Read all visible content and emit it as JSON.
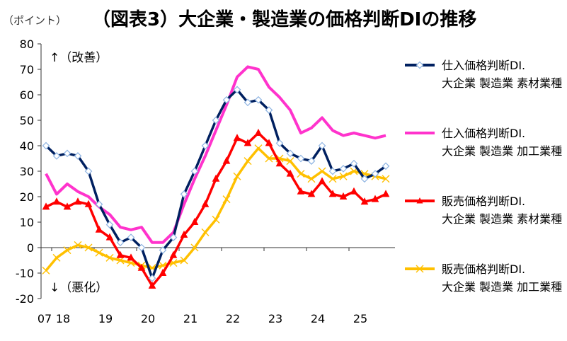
{
  "unit_label": "（ポイント）",
  "chart_data": {
    "type": "line",
    "title": "（図表3）大企業・製造業の価格判断DIの推移",
    "ylim": [
      -20,
      80
    ],
    "yticks": [
      -20,
      -10,
      0,
      10,
      20,
      30,
      40,
      50,
      60,
      70,
      80
    ],
    "x_tick_labels": [
      "07",
      "18",
      "19",
      "20",
      "21",
      "22",
      "23",
      "24",
      "25"
    ],
    "annotations": {
      "improve": "↑（改善）",
      "worsen": "↓（悪化）"
    },
    "grid": false,
    "legend_position": "right",
    "x_quarters": [
      "2017Q4",
      "2018Q1",
      "2018Q2",
      "2018Q3",
      "2018Q4",
      "2019Q1",
      "2019Q2",
      "2019Q3",
      "2019Q4",
      "2020Q1",
      "2020Q2",
      "2020Q3",
      "2020Q4",
      "2021Q1",
      "2021Q2",
      "2021Q3",
      "2021Q4",
      "2022Q1",
      "2022Q2",
      "2022Q3",
      "2022Q4",
      "2023Q1",
      "2023Q2",
      "2023Q3",
      "2023Q4",
      "2024Q1",
      "2024Q2",
      "2024Q3",
      "2024Q4",
      "2025Q1",
      "2025Q2",
      "2025Q3",
      "2025Q4"
    ],
    "series": [
      {
        "name": "仕入価格判断DI. 大企業 製造業 素材業種",
        "color": "#002060",
        "marker": "diamond",
        "values": [
          40,
          36,
          37,
          36,
          30,
          17,
          9,
          2,
          4,
          0,
          -12,
          -1,
          4,
          21,
          30,
          40,
          50,
          58,
          62,
          57,
          58,
          54,
          41,
          37,
          35,
          34,
          40,
          30,
          31,
          33,
          27,
          29,
          32
        ]
      },
      {
        "name": "仕入価格判断DI. 大企業 製造業 加工業種",
        "color": "#ff33cc",
        "marker": "none",
        "values": [
          29,
          21,
          25,
          22,
          20,
          16,
          13,
          8,
          7,
          8,
          2,
          2,
          6,
          17,
          27,
          36,
          46,
          56,
          67,
          71,
          70,
          63,
          59,
          54,
          45,
          47,
          51,
          46,
          44,
          45,
          44,
          43,
          44
        ]
      },
      {
        "name": "販売価格判断DI. 大企業 製造業 素材業種",
        "color": "#ff0000",
        "marker": "triangle",
        "values": [
          16,
          18,
          16,
          18,
          17,
          7,
          4,
          -3,
          -4,
          -8,
          -15,
          -10,
          -3,
          5,
          10,
          17,
          27,
          34,
          43,
          41,
          45,
          41,
          33,
          29,
          22,
          21,
          26,
          21,
          20,
          22,
          18,
          19,
          21
        ]
      },
      {
        "name": "販売価格判断DI. 大企業 製造業 加工業種",
        "color": "#ffc000",
        "marker": "x",
        "values": [
          -9,
          -4,
          -1,
          1,
          0,
          -2,
          -4,
          -5,
          -6,
          -7,
          -8,
          -7,
          -6,
          -5,
          0,
          6,
          11,
          19,
          28,
          34,
          39,
          35,
          35,
          34,
          29,
          27,
          30,
          27,
          28,
          30,
          29,
          28,
          27
        ]
      }
    ]
  }
}
